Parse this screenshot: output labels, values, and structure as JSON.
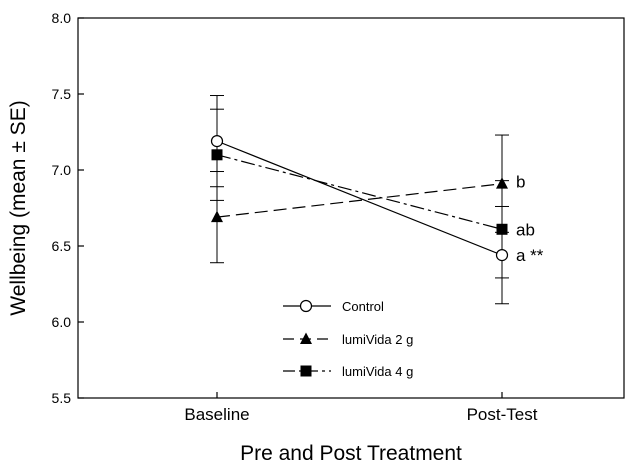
{
  "chart_data": {
    "type": "line",
    "categories": [
      "Baseline",
      "Post-Test"
    ],
    "xlabel": "Pre and Post Treatment",
    "ylabel": "Wellbeing (mean ± SE)",
    "ylim": [
      5.5,
      8.0
    ],
    "yticks": [
      "5.5",
      "6.0",
      "6.5",
      "7.0",
      "7.5",
      "8.0"
    ],
    "grid": false,
    "legend_position": "bottom-center",
    "series": [
      {
        "name": "Control",
        "values": [
          7.19,
          6.44
        ],
        "se": [
          0.3,
          0.32
        ],
        "marker": "open-circle",
        "line": "solid",
        "annotation": "a **"
      },
      {
        "name": "lumiVida 2 g",
        "values": [
          6.69,
          6.91
        ],
        "se": [
          0.3,
          0.32
        ],
        "marker": "filled-triangle",
        "line": "long-dash",
        "annotation": "b"
      },
      {
        "name": "lumiVida 4 g",
        "values": [
          7.1,
          6.61
        ],
        "se": [
          0.3,
          0.32
        ],
        "marker": "filled-square",
        "line": "dash-dot",
        "annotation": "ab"
      }
    ]
  }
}
